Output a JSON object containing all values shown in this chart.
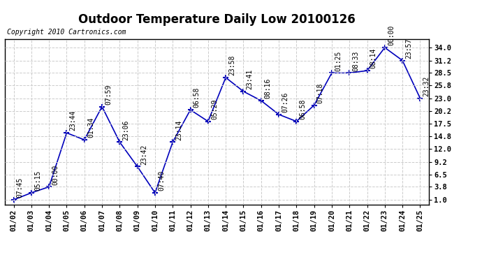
{
  "title": "Outdoor Temperature Daily Low 20100126",
  "copyright_text": "Copyright 2010 Cartronics.com",
  "x_labels": [
    "01/02",
    "01/03",
    "01/04",
    "01/05",
    "01/06",
    "01/07",
    "01/08",
    "01/09",
    "01/10",
    "01/11",
    "01/12",
    "01/13",
    "01/14",
    "01/15",
    "01/16",
    "01/17",
    "01/18",
    "01/19",
    "01/20",
    "01/21",
    "01/22",
    "01/23",
    "01/24",
    "01/25"
  ],
  "y_values": [
    1.0,
    2.5,
    3.8,
    15.5,
    14.0,
    21.2,
    13.5,
    8.2,
    2.5,
    13.5,
    20.5,
    18.0,
    27.5,
    24.5,
    22.5,
    19.5,
    18.0,
    21.5,
    28.5,
    28.5,
    29.0,
    34.0,
    31.2,
    23.0
  ],
  "time_labels": [
    "07:45",
    "05:15",
    "00:00",
    "23:44",
    "01:34",
    "07:59",
    "23:06",
    "23:42",
    "07:40",
    "23:14",
    "06:58",
    "05:29",
    "23:58",
    "23:41",
    "08:16",
    "07:26",
    "06:58",
    "07:18",
    "01:25",
    "08:33",
    "08:14",
    "00:00",
    "23:57",
    "23:32"
  ],
  "line_color": "#0000bb",
  "bg_color": "#ffffff",
  "grid_color": "#cccccc",
  "ylim": [
    0.0,
    35.8
  ],
  "yticks": [
    1.0,
    3.8,
    6.5,
    9.2,
    12.0,
    14.8,
    17.5,
    20.2,
    23.0,
    25.8,
    28.5,
    31.2,
    34.0
  ],
  "title_fontsize": 12,
  "label_fontsize": 7,
  "tick_fontsize": 7.5,
  "copyright_fontsize": 7
}
